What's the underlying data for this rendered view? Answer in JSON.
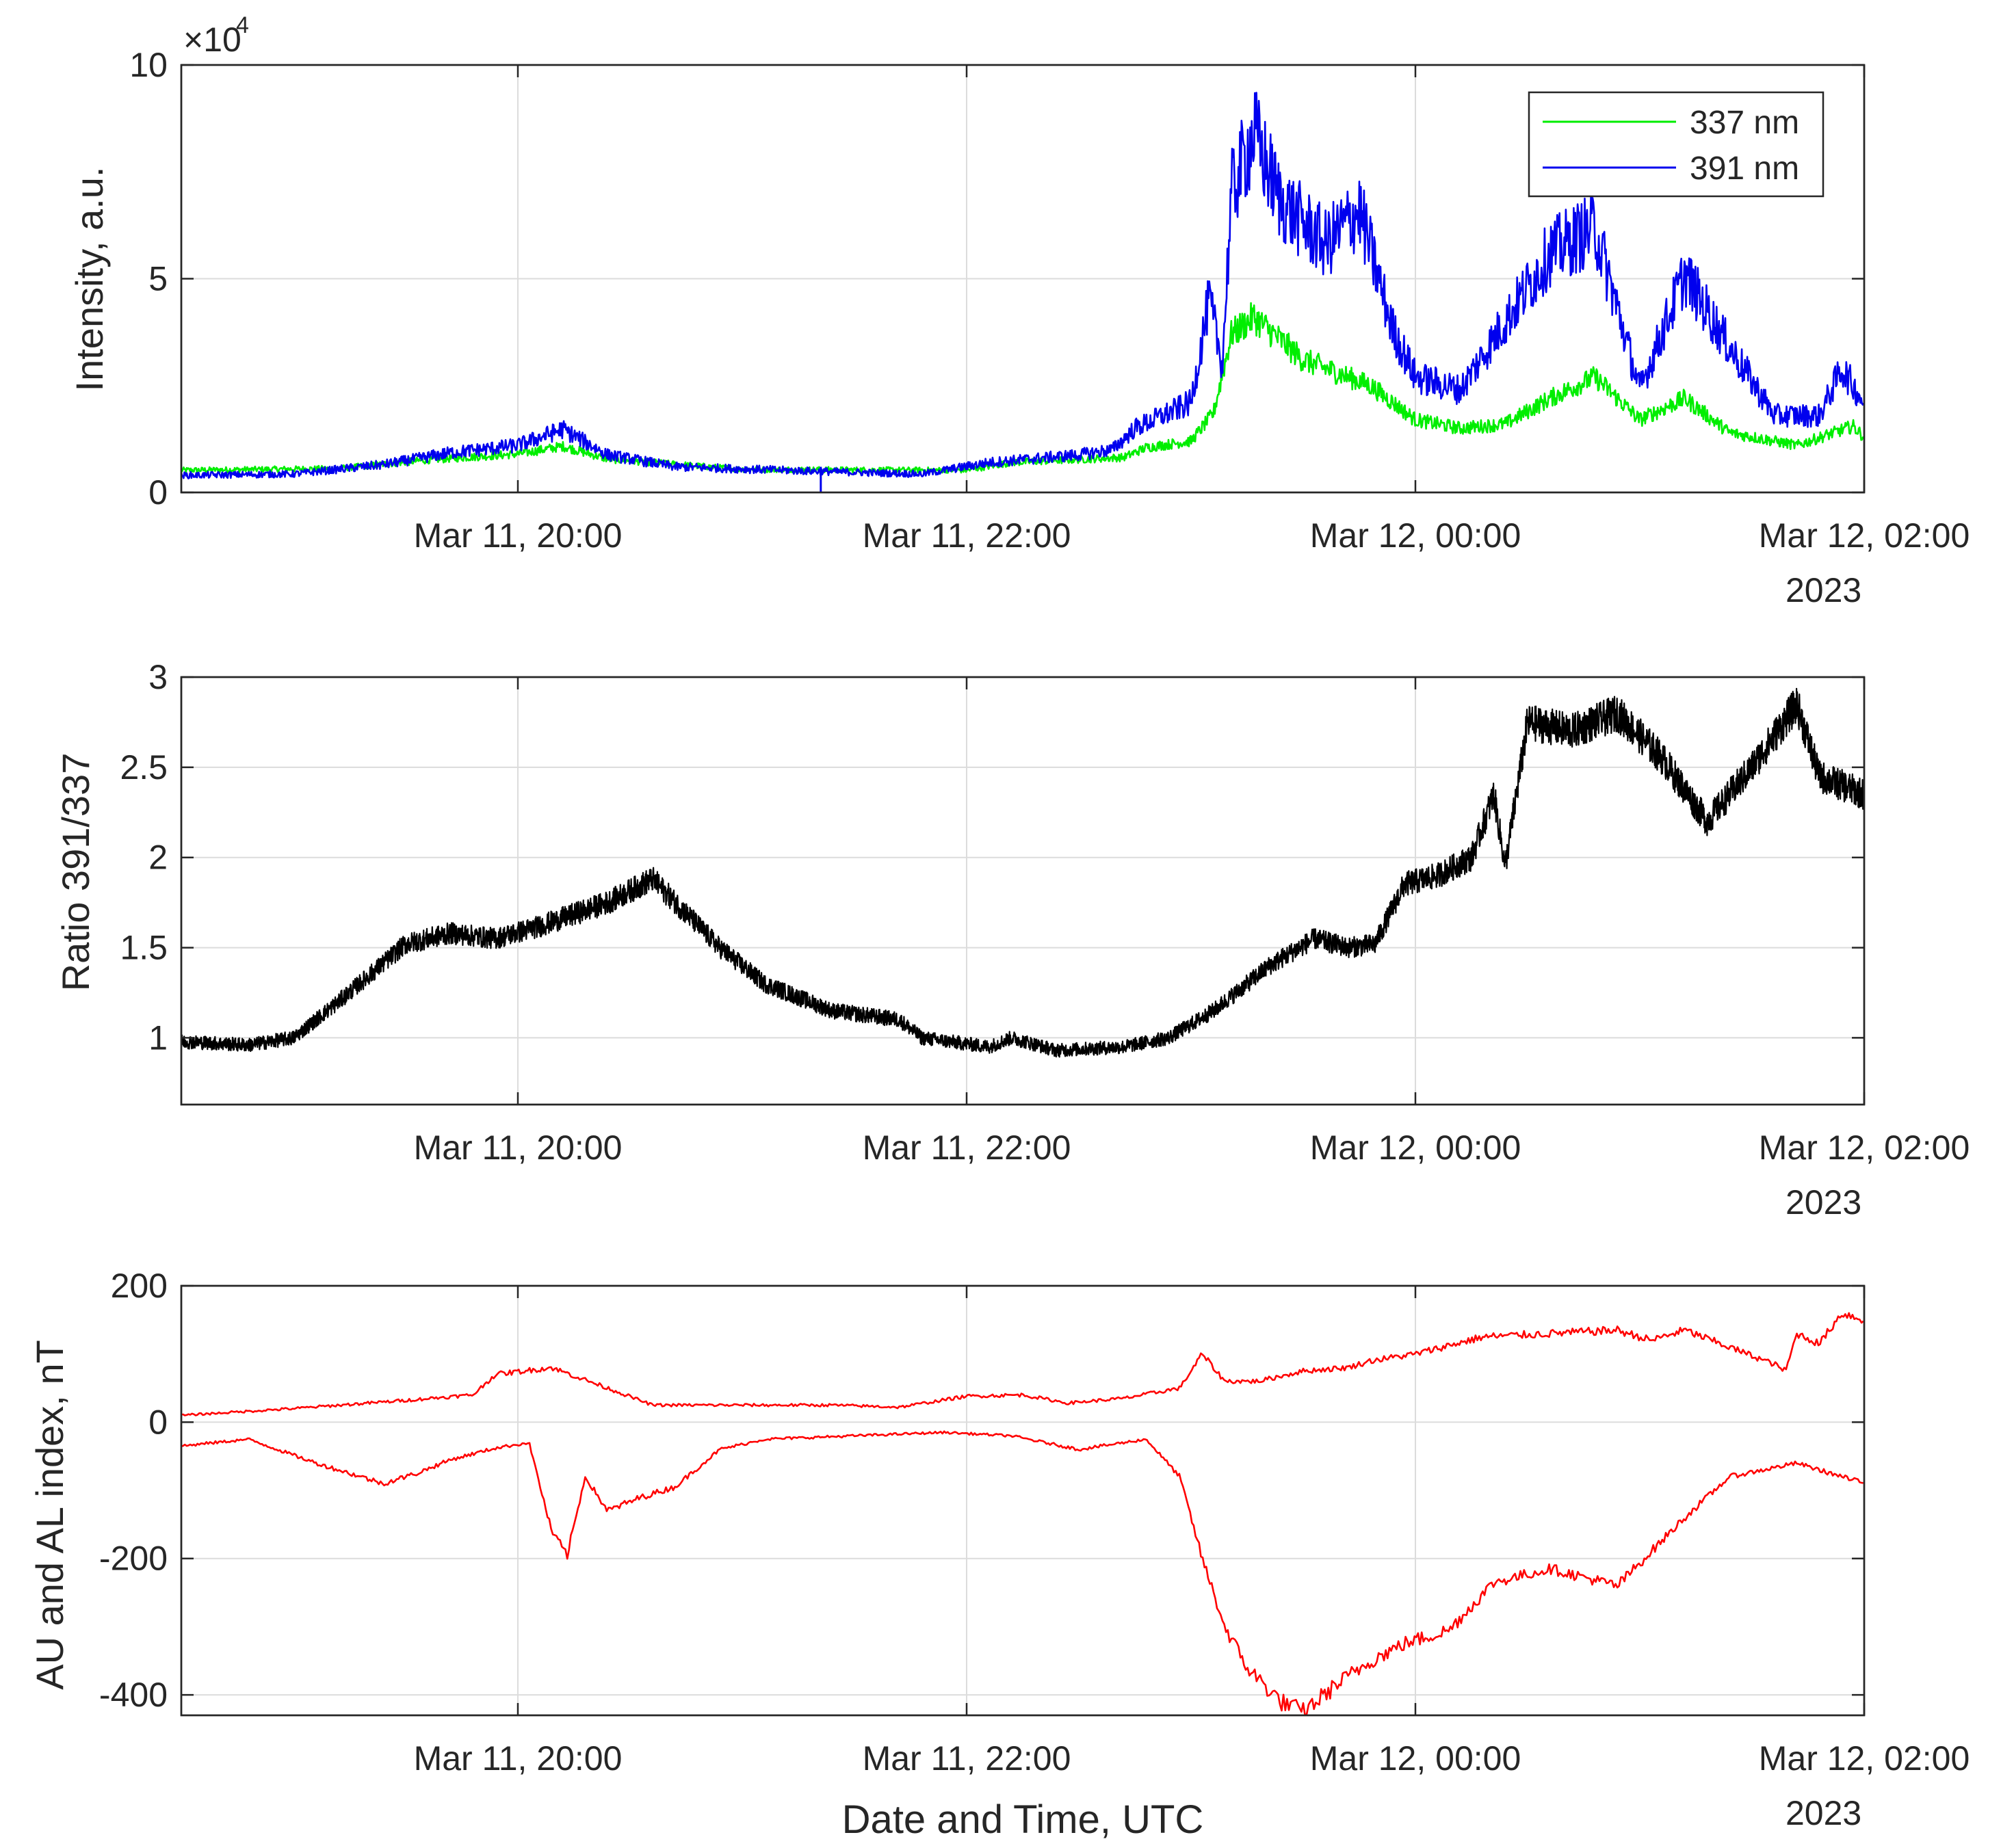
{
  "chart_data": [
    {
      "type": "line",
      "id": "intensity",
      "ylabel": "Intensity, a.u.",
      "y_exponent_label": "×10",
      "y_exponent_power": "4",
      "ylim": [
        0,
        100000
      ],
      "yticks": [
        0,
        50000,
        100000
      ],
      "yticklabels": [
        "0",
        "5",
        "10"
      ],
      "xlim_hours": [
        -5.5,
        2.0
      ],
      "xticks_hours": [
        -4,
        -2,
        0,
        2
      ],
      "xticklabels": [
        "Mar 11, 20:00",
        "Mar 11, 22:00",
        "Mar 12, 00:00",
        "Mar 12, 02:00"
      ],
      "year_label": "2023",
      "legend": [
        "337 nm",
        "391 nm"
      ],
      "legend_position": "top-right",
      "series": [
        {
          "name": "337 nm",
          "color": "#00ee00",
          "noise": 0.09,
          "keypoints": [
            [
              -5.5,
              5200
            ],
            [
              -4.8,
              5600
            ],
            [
              -4.4,
              7600
            ],
            [
              -4.0,
              9000
            ],
            [
              -3.8,
              10800
            ],
            [
              -3.6,
              7800
            ],
            [
              -3.0,
              5400
            ],
            [
              -2.0,
              5200
            ],
            [
              -1.8,
              7000
            ],
            [
              -1.3,
              8200
            ],
            [
              -1.2,
              10500
            ],
            [
              -1.0,
              12000
            ],
            [
              -0.9,
              18500
            ],
            [
              -0.82,
              37000
            ],
            [
              -0.72,
              41000
            ],
            [
              -0.5,
              31000
            ],
            [
              -0.2,
              25000
            ],
            [
              0.0,
              17000
            ],
            [
              0.2,
              15000
            ],
            [
              0.4,
              16000
            ],
            [
              0.6,
              22000
            ],
            [
              0.8,
              27000
            ],
            [
              1.0,
              17000
            ],
            [
              1.2,
              22000
            ],
            [
              1.4,
              14000
            ],
            [
              1.7,
              11000
            ],
            [
              1.95,
              15500
            ],
            [
              2.0,
              13000
            ]
          ]
        },
        {
          "name": "391 nm",
          "color": "#0000ee",
          "noise": 0.14,
          "keypoints": [
            [
              -5.5,
              4000
            ],
            [
              -5.0,
              4300
            ],
            [
              -4.6,
              6500
            ],
            [
              -4.3,
              9300
            ],
            [
              -4.0,
              11000
            ],
            [
              -3.8,
              14800
            ],
            [
              -3.6,
              8800
            ],
            [
              -3.3,
              6000
            ],
            [
              -2.7,
              5000
            ],
            [
              -2.2,
              4300
            ],
            [
              -1.9,
              7000
            ],
            [
              -1.5,
              8800
            ],
            [
              -1.35,
              10000
            ],
            [
              -1.25,
              15000
            ],
            [
              -1.0,
              21000
            ],
            [
              -0.92,
              45000
            ],
            [
              -0.86,
              30000
            ],
            [
              -0.82,
              70000
            ],
            [
              -0.72,
              84000
            ],
            [
              -0.6,
              68000
            ],
            [
              -0.4,
              58000
            ],
            [
              -0.25,
              66000
            ],
            [
              -0.1,
              38000
            ],
            [
              0.0,
              27000
            ],
            [
              0.2,
              24000
            ],
            [
              0.4,
              40000
            ],
            [
              0.6,
              56000
            ],
            [
              0.8,
              62000
            ],
            [
              1.0,
              24000
            ],
            [
              1.2,
              51000
            ],
            [
              1.4,
              34000
            ],
            [
              1.6,
              18000
            ],
            [
              1.8,
              18000
            ],
            [
              1.9,
              29000
            ],
            [
              2.0,
              21000
            ]
          ]
        }
      ]
    },
    {
      "type": "line",
      "id": "ratio",
      "ylabel": "Ratio 391/337",
      "ylim": [
        0.63,
        3.0
      ],
      "yticks": [
        1,
        1.5,
        2,
        2.5,
        3
      ],
      "yticklabels": [
        "1",
        "1.5",
        "2",
        "2.5",
        "3"
      ],
      "xlim_hours": [
        -5.5,
        2.0
      ],
      "xticks_hours": [
        -4,
        -2,
        0,
        2
      ],
      "xticklabels": [
        "Mar 11, 20:00",
        "Mar 11, 22:00",
        "Mar 12, 00:00",
        "Mar 12, 02:00"
      ],
      "year_label": "2023",
      "series": [
        {
          "name": "Ratio 391/337",
          "color": "#000000",
          "noise": 0.035,
          "keypoints": [
            [
              -5.5,
              0.98
            ],
            [
              -5.2,
              0.96
            ],
            [
              -5.0,
              1.0
            ],
            [
              -4.8,
              1.2
            ],
            [
              -4.5,
              1.52
            ],
            [
              -4.3,
              1.58
            ],
            [
              -4.1,
              1.55
            ],
            [
              -3.9,
              1.62
            ],
            [
              -3.6,
              1.75
            ],
            [
              -3.4,
              1.88
            ],
            [
              -3.1,
              1.5
            ],
            [
              -2.9,
              1.3
            ],
            [
              -2.6,
              1.15
            ],
            [
              -2.3,
              1.1
            ],
            [
              -2.2,
              1.0
            ],
            [
              -1.9,
              0.95
            ],
            [
              -1.8,
              1.0
            ],
            [
              -1.6,
              0.93
            ],
            [
              -1.3,
              0.95
            ],
            [
              -1.1,
              1.0
            ],
            [
              -0.9,
              1.15
            ],
            [
              -0.65,
              1.4
            ],
            [
              -0.45,
              1.55
            ],
            [
              -0.3,
              1.5
            ],
            [
              -0.18,
              1.52
            ],
            [
              -0.05,
              1.85
            ],
            [
              0.1,
              1.9
            ],
            [
              0.25,
              2.0
            ],
            [
              0.35,
              2.35
            ],
            [
              0.4,
              1.95
            ],
            [
              0.5,
              2.75
            ],
            [
              0.7,
              2.7
            ],
            [
              0.9,
              2.8
            ],
            [
              1.1,
              2.55
            ],
            [
              1.3,
              2.2
            ],
            [
              1.5,
              2.5
            ],
            [
              1.7,
              2.85
            ],
            [
              1.8,
              2.45
            ],
            [
              2.0,
              2.35
            ]
          ]
        }
      ]
    },
    {
      "type": "line",
      "id": "auroral",
      "ylabel": "AU and AL index, nT",
      "xlabel": "Date and Time, UTC",
      "ylim": [
        -430,
        200
      ],
      "yticks": [
        -400,
        -200,
        0,
        200
      ],
      "yticklabels": [
        "-400",
        "-200",
        "0",
        "200"
      ],
      "xlim_hours": [
        -5.5,
        2.0
      ],
      "xticks_hours": [
        -4,
        -2,
        0,
        2
      ],
      "xticklabels": [
        "Mar 11, 20:00",
        "Mar 11, 22:00",
        "Mar 12, 00:00",
        "Mar 12, 02:00"
      ],
      "year_label": "2023",
      "series": [
        {
          "name": "AU",
          "color": "#ff0000",
          "noise": 0.035,
          "keypoints": [
            [
              -5.5,
              10
            ],
            [
              -5.0,
              20
            ],
            [
              -4.5,
              32
            ],
            [
              -4.2,
              40
            ],
            [
              -4.1,
              70
            ],
            [
              -3.85,
              80
            ],
            [
              -3.6,
              50
            ],
            [
              -3.4,
              25
            ],
            [
              -3.0,
              25
            ],
            [
              -2.6,
              25
            ],
            [
              -2.3,
              22
            ],
            [
              -2.0,
              38
            ],
            [
              -1.75,
              40
            ],
            [
              -1.55,
              28
            ],
            [
              -1.3,
              35
            ],
            [
              -1.05,
              50
            ],
            [
              -0.95,
              100
            ],
            [
              -0.85,
              60
            ],
            [
              -0.7,
              60
            ],
            [
              -0.5,
              75
            ],
            [
              -0.3,
              80
            ],
            [
              -0.2,
              90
            ],
            [
              0.0,
              100
            ],
            [
              0.3,
              125
            ],
            [
              0.6,
              130
            ],
            [
              0.9,
              135
            ],
            [
              1.05,
              120
            ],
            [
              1.2,
              135
            ],
            [
              1.4,
              110
            ],
            [
              1.6,
              85
            ],
            [
              1.65,
              75
            ],
            [
              1.7,
              130
            ],
            [
              1.8,
              115
            ],
            [
              1.9,
              160
            ],
            [
              2.0,
              150
            ]
          ]
        },
        {
          "name": "AL",
          "color": "#ff0000",
          "noise": 0.03,
          "keypoints": [
            [
              -5.5,
              -35
            ],
            [
              -5.2,
              -25
            ],
            [
              -4.9,
              -60
            ],
            [
              -4.6,
              -90
            ],
            [
              -4.45,
              -75
            ],
            [
              -4.3,
              -55
            ],
            [
              -4.1,
              -38
            ],
            [
              -3.95,
              -30
            ],
            [
              -3.85,
              -160
            ],
            [
              -3.78,
              -195
            ],
            [
              -3.7,
              -80
            ],
            [
              -3.6,
              -130
            ],
            [
              -3.45,
              -110
            ],
            [
              -3.3,
              -95
            ],
            [
              -3.1,
              -40
            ],
            [
              -2.9,
              -25
            ],
            [
              -2.5,
              -20
            ],
            [
              -2.1,
              -15
            ],
            [
              -1.8,
              -20
            ],
            [
              -1.5,
              -40
            ],
            [
              -1.2,
              -25
            ],
            [
              -1.05,
              -80
            ],
            [
              -0.95,
              -200
            ],
            [
              -0.85,
              -300
            ],
            [
              -0.75,
              -360
            ],
            [
              -0.6,
              -410
            ],
            [
              -0.5,
              -425
            ],
            [
              -0.35,
              -385
            ],
            [
              -0.2,
              -350
            ],
            [
              -0.05,
              -325
            ],
            [
              0.15,
              -305
            ],
            [
              0.35,
              -235
            ],
            [
              0.6,
              -215
            ],
            [
              0.9,
              -240
            ],
            [
              1.2,
              -140
            ],
            [
              1.4,
              -80
            ],
            [
              1.7,
              -60
            ],
            [
              2.0,
              -90
            ]
          ]
        }
      ]
    }
  ]
}
